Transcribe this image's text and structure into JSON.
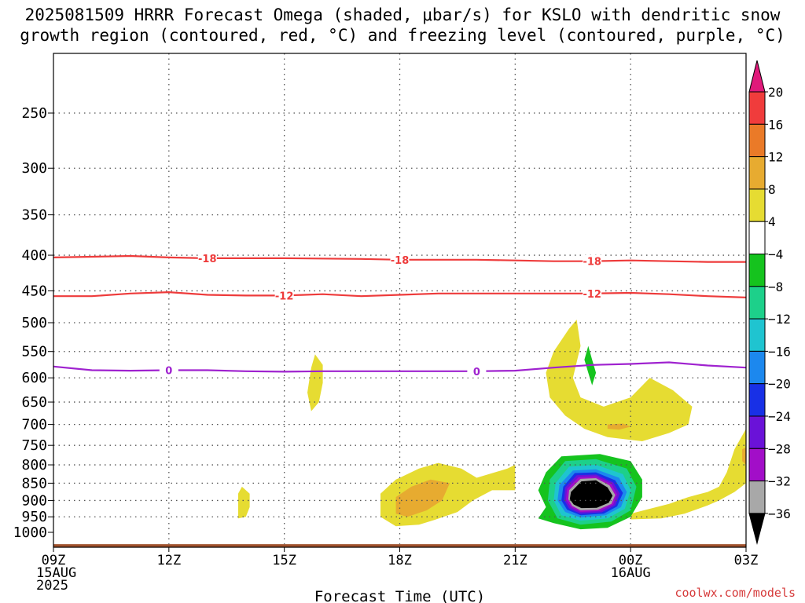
{
  "title_line1": "2025081509 HRRR Forecast Omega (shaded, μbar/s) for KSLO with dendritic snow",
  "title_line2": "growth region (contoured, red, °C) and freezing level (contoured, purple, °C)",
  "credit": "coolwx.com/models",
  "chart_data": {
    "type": "contour",
    "title": "2025081509 HRRR Forecast Omega (shaded, μbar/s) for KSLO with dendritic snow growth region (contoured, red, °C) and freezing level (contoured, purple, °C)",
    "xlabel": "Forecast Time (UTC)",
    "ylabel": "",
    "y_scale": "log-pressure (inverted)",
    "ylim": [
      1000,
      200
    ],
    "xlim_hours": [
      0,
      18
    ],
    "grid": true,
    "x_ticks": [
      {
        "hour": 0,
        "lines": [
          "09Z",
          "15AUG",
          "2025"
        ]
      },
      {
        "hour": 3,
        "lines": [
          "12Z"
        ]
      },
      {
        "hour": 6,
        "lines": [
          "15Z"
        ]
      },
      {
        "hour": 9,
        "lines": [
          "18Z"
        ]
      },
      {
        "hour": 12,
        "lines": [
          "21Z"
        ]
      },
      {
        "hour": 15,
        "lines": [
          "00Z",
          "16AUG"
        ]
      },
      {
        "hour": 18,
        "lines": [
          "03Z"
        ]
      }
    ],
    "y_ticks": [
      250,
      300,
      350,
      400,
      450,
      500,
      550,
      600,
      650,
      700,
      750,
      800,
      850,
      900,
      950,
      1000
    ],
    "colorbar": {
      "labels": [
        "20",
        "16",
        "12",
        "8",
        "4",
        "−4",
        "−8",
        "−12",
        "−16",
        "−20",
        "−24",
        "−28",
        "−32",
        "−36"
      ],
      "levels": [
        20,
        16,
        12,
        8,
        4,
        -4,
        -8,
        -12,
        -16,
        -20,
        -24,
        -28,
        -32,
        -36
      ],
      "colors": [
        "#e0197a",
        "#f03c3c",
        "#ea7a28",
        "#e7ab30",
        "#e6dc32",
        "#ffffff",
        "#15c31e",
        "#1dd08a",
        "#1fc4d0",
        "#1c88ee",
        "#1830e6",
        "#6a12d8",
        "#a20ec8",
        "#a8a8a8",
        "#000000"
      ]
    },
    "contours": [
      {
        "name": "-18",
        "color": "#ee3b3b",
        "points": [
          [
            0,
            403
          ],
          [
            1,
            402
          ],
          [
            2,
            401
          ],
          [
            3,
            403
          ],
          [
            4,
            404
          ],
          [
            6,
            404
          ],
          [
            8,
            405
          ],
          [
            9,
            406
          ],
          [
            10,
            406
          ],
          [
            11,
            406
          ],
          [
            12,
            407
          ],
          [
            13,
            408
          ],
          [
            14,
            408
          ],
          [
            15,
            407
          ],
          [
            16,
            408
          ],
          [
            17,
            409
          ],
          [
            18,
            409
          ]
        ],
        "labels": [
          [
            4,
            "-18"
          ],
          [
            9,
            "-18"
          ],
          [
            14,
            "-18"
          ]
        ]
      },
      {
        "name": "-12",
        "color": "#ee3b3b",
        "points": [
          [
            0,
            458
          ],
          [
            1,
            458
          ],
          [
            2,
            454
          ],
          [
            3,
            452
          ],
          [
            4,
            456
          ],
          [
            5,
            457
          ],
          [
            6,
            457
          ],
          [
            7,
            455
          ],
          [
            8,
            458
          ],
          [
            9,
            456
          ],
          [
            10,
            454
          ],
          [
            11,
            454
          ],
          [
            12,
            454
          ],
          [
            13,
            454
          ],
          [
            14,
            454
          ],
          [
            15,
            453
          ],
          [
            16,
            455
          ],
          [
            17,
            458
          ],
          [
            18,
            460
          ]
        ],
        "labels": [
          [
            6,
            "-12"
          ],
          [
            14,
            "-12"
          ]
        ]
      },
      {
        "name": "0",
        "color": "#9f22cf",
        "points": [
          [
            0,
            578
          ],
          [
            1,
            585
          ],
          [
            2,
            586
          ],
          [
            3,
            585
          ],
          [
            4,
            585
          ],
          [
            5,
            587
          ],
          [
            6,
            588
          ],
          [
            7,
            587
          ],
          [
            8,
            587
          ],
          [
            9,
            587
          ],
          [
            10,
            587
          ],
          [
            11,
            587
          ],
          [
            12,
            586
          ],
          [
            13,
            580
          ],
          [
            14,
            575
          ],
          [
            15,
            573
          ],
          [
            16,
            570
          ],
          [
            17,
            576
          ],
          [
            18,
            580
          ]
        ],
        "labels": [
          [
            3,
            "0"
          ],
          [
            11,
            "0"
          ]
        ]
      }
    ],
    "shaded_regions": [
      {
        "level": 4,
        "color": "#e6dc32",
        "points": [
          [
            6.7,
            580
          ],
          [
            6.8,
            555
          ],
          [
            7.0,
            575
          ],
          [
            7.0,
            610
          ],
          [
            6.9,
            650
          ],
          [
            6.7,
            670
          ],
          [
            6.6,
            630
          ]
        ]
      },
      {
        "level": 4,
        "color": "#e6dc32",
        "points": [
          [
            4.8,
            880
          ],
          [
            4.9,
            860
          ],
          [
            5.1,
            880
          ],
          [
            5.1,
            920
          ],
          [
            5.0,
            950
          ],
          [
            4.8,
            955
          ]
        ]
      },
      {
        "level": 4,
        "color": "#e6dc32",
        "points": [
          [
            8.5,
            880
          ],
          [
            8.9,
            840
          ],
          [
            9.5,
            810
          ],
          [
            10.0,
            795
          ],
          [
            10.6,
            810
          ],
          [
            11.0,
            835
          ],
          [
            11.8,
            810
          ],
          [
            12.0,
            800
          ],
          [
            12.0,
            870
          ],
          [
            11.4,
            870
          ],
          [
            10.9,
            900
          ],
          [
            10.5,
            935
          ],
          [
            9.9,
            960
          ],
          [
            9.5,
            975
          ],
          [
            8.9,
            980
          ],
          [
            8.5,
            950
          ]
        ]
      },
      {
        "level": 4,
        "color": "#e6dc32",
        "points": [
          [
            12.8,
            590
          ],
          [
            13.0,
            550
          ],
          [
            13.4,
            510
          ],
          [
            13.6,
            495
          ],
          [
            13.7,
            540
          ],
          [
            13.5,
            600
          ],
          [
            13.7,
            640
          ],
          [
            14.3,
            660
          ],
          [
            15.0,
            640
          ],
          [
            15.5,
            600
          ],
          [
            16.1,
            625
          ],
          [
            16.6,
            660
          ],
          [
            16.5,
            700
          ],
          [
            16.0,
            720
          ],
          [
            15.3,
            740
          ],
          [
            14.4,
            730
          ],
          [
            13.8,
            710
          ],
          [
            13.3,
            680
          ],
          [
            12.9,
            640
          ]
        ]
      },
      {
        "level": 4,
        "color": "#e6dc32",
        "points": [
          [
            15.0,
            940
          ],
          [
            16.0,
            910
          ],
          [
            16.5,
            890
          ],
          [
            17.0,
            875
          ],
          [
            17.3,
            860
          ],
          [
            17.5,
            820
          ],
          [
            17.7,
            760
          ],
          [
            18.0,
            710
          ],
          [
            18.0,
            850
          ],
          [
            17.7,
            875
          ],
          [
            17.3,
            900
          ],
          [
            17.0,
            915
          ],
          [
            16.4,
            940
          ],
          [
            15.8,
            955
          ],
          [
            15.0,
            958
          ]
        ]
      },
      {
        "level": 8,
        "color": "#e7ab30",
        "points": [
          [
            8.9,
            890
          ],
          [
            9.3,
            860
          ],
          [
            9.8,
            840
          ],
          [
            10.3,
            850
          ],
          [
            10.1,
            900
          ],
          [
            9.7,
            930
          ],
          [
            9.2,
            950
          ],
          [
            8.9,
            940
          ]
        ]
      },
      {
        "level": 8,
        "color": "#e7ab30",
        "points": [
          [
            14.4,
            700
          ],
          [
            14.8,
            698
          ],
          [
            15.0,
            705
          ],
          [
            14.7,
            712
          ],
          [
            14.4,
            710
          ]
        ]
      },
      {
        "level": 8,
        "color": "#e7ab30",
        "points": [
          [
            17.9,
            760
          ],
          [
            18.0,
            755
          ],
          [
            18.0,
            800
          ],
          [
            17.9,
            790
          ]
        ]
      },
      {
        "level": -4,
        "color": "#15c31e",
        "points": [
          [
            13.9,
            540
          ],
          [
            14.0,
            565
          ],
          [
            14.1,
            590
          ],
          [
            14.0,
            615
          ],
          [
            13.9,
            590
          ],
          [
            13.8,
            565
          ]
        ]
      },
      {
        "level": -4,
        "color": "#15c31e",
        "points": [
          [
            12.8,
            820
          ],
          [
            13.2,
            778
          ],
          [
            14.2,
            772
          ],
          [
            15.0,
            790
          ],
          [
            15.3,
            840
          ],
          [
            15.3,
            890
          ],
          [
            15.0,
            950
          ],
          [
            14.4,
            985
          ],
          [
            13.7,
            990
          ],
          [
            13.0,
            970
          ],
          [
            12.6,
            955
          ],
          [
            12.8,
            920
          ],
          [
            12.6,
            870
          ]
        ]
      },
      {
        "level": -8,
        "color": "#1dd08a",
        "points": [
          [
            12.9,
            840
          ],
          [
            13.3,
            790
          ],
          [
            14.1,
            785
          ],
          [
            14.9,
            810
          ],
          [
            15.15,
            860
          ],
          [
            15.0,
            930
          ],
          [
            14.5,
            965
          ],
          [
            13.7,
            975
          ],
          [
            13.1,
            955
          ],
          [
            12.85,
            900
          ]
        ]
      },
      {
        "level": -12,
        "color": "#1fc4d0",
        "points": [
          [
            13.05,
            850
          ],
          [
            13.4,
            805
          ],
          [
            14.1,
            800
          ],
          [
            14.8,
            825
          ],
          [
            15.0,
            870
          ],
          [
            14.85,
            925
          ],
          [
            14.4,
            955
          ],
          [
            13.7,
            962
          ],
          [
            13.2,
            945
          ],
          [
            13.0,
            900
          ]
        ]
      },
      {
        "level": -16,
        "color": "#1c88ee",
        "points": [
          [
            13.15,
            855
          ],
          [
            13.5,
            815
          ],
          [
            14.1,
            812
          ],
          [
            14.7,
            835
          ],
          [
            14.9,
            875
          ],
          [
            14.75,
            920
          ],
          [
            14.35,
            945
          ],
          [
            13.7,
            952
          ],
          [
            13.3,
            935
          ],
          [
            13.1,
            900
          ]
        ]
      },
      {
        "level": -20,
        "color": "#1830e6",
        "points": [
          [
            13.25,
            860
          ],
          [
            13.55,
            822
          ],
          [
            14.1,
            820
          ],
          [
            14.6,
            842
          ],
          [
            14.8,
            878
          ],
          [
            14.65,
            918
          ],
          [
            14.3,
            940
          ],
          [
            13.7,
            945
          ],
          [
            13.35,
            928
          ],
          [
            13.2,
            900
          ]
        ]
      },
      {
        "level": -24,
        "color": "#6a12d8",
        "points": [
          [
            13.3,
            862
          ],
          [
            13.6,
            828
          ],
          [
            14.1,
            826
          ],
          [
            14.55,
            848
          ],
          [
            14.72,
            880
          ],
          [
            14.6,
            915
          ],
          [
            14.25,
            936
          ],
          [
            13.7,
            940
          ],
          [
            13.4,
            924
          ],
          [
            13.27,
            898
          ]
        ]
      },
      {
        "level": -28,
        "color": "#a20ec8",
        "points": [
          [
            13.35,
            866
          ],
          [
            13.65,
            833
          ],
          [
            14.1,
            831
          ],
          [
            14.5,
            852
          ],
          [
            14.65,
            882
          ],
          [
            14.55,
            912
          ],
          [
            14.2,
            932
          ],
          [
            13.7,
            935
          ],
          [
            13.45,
            920
          ],
          [
            13.32,
            897
          ]
        ]
      },
      {
        "level": -32,
        "color": "#a8a8a8",
        "points": [
          [
            13.4,
            870
          ],
          [
            13.7,
            838
          ],
          [
            14.1,
            836
          ],
          [
            14.45,
            856
          ],
          [
            14.6,
            884
          ],
          [
            14.5,
            910
          ],
          [
            14.15,
            928
          ],
          [
            13.7,
            930
          ],
          [
            13.48,
            916
          ],
          [
            13.38,
            896
          ]
        ]
      },
      {
        "level": -36,
        "color": "#000000",
        "points": [
          [
            13.45,
            875
          ],
          [
            13.72,
            845
          ],
          [
            14.1,
            842
          ],
          [
            14.4,
            862
          ],
          [
            14.53,
            886
          ],
          [
            14.43,
            907
          ],
          [
            14.12,
            922
          ],
          [
            13.72,
            923
          ],
          [
            13.52,
            912
          ],
          [
            13.42,
            896
          ]
        ]
      }
    ],
    "ground": {
      "color": "#a0522d",
      "from_pressure": 1040
    }
  }
}
